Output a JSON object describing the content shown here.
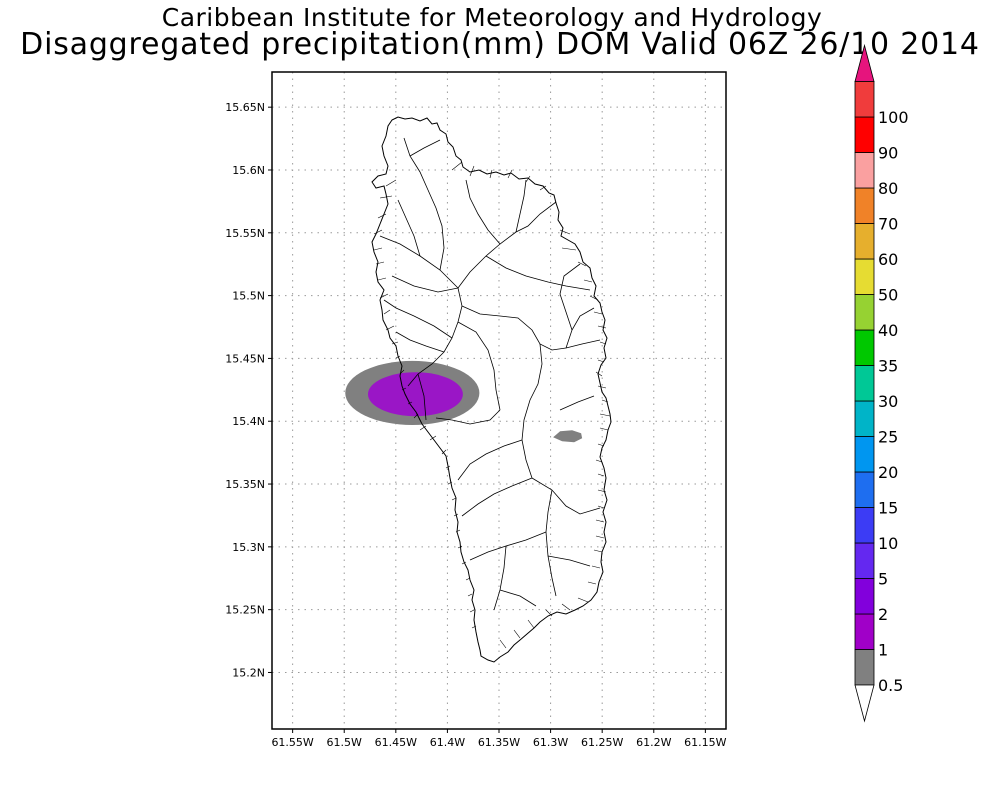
{
  "header": {
    "institute": "Caribbean Institute for Meteorology and Hydrology",
    "product": "Disaggregated precipitation(mm) DOM Valid 06Z 26/10 2014"
  },
  "map": {
    "lon_range": [
      -61.57,
      -61.13
    ],
    "lat_range": [
      15.155,
      15.678
    ],
    "x_ticks": [
      {
        "value": -61.55,
        "label": "61.55W"
      },
      {
        "value": -61.5,
        "label": "61.5W"
      },
      {
        "value": -61.45,
        "label": "61.45W"
      },
      {
        "value": -61.4,
        "label": "61.4W"
      },
      {
        "value": -61.35,
        "label": "61.35W"
      },
      {
        "value": -61.3,
        "label": "61.3W"
      },
      {
        "value": -61.25,
        "label": "61.25W"
      },
      {
        "value": -61.2,
        "label": "61.2W"
      },
      {
        "value": -61.15,
        "label": "61.15W"
      }
    ],
    "y_ticks": [
      {
        "value": 15.2,
        "label": "15.2N"
      },
      {
        "value": 15.25,
        "label": "15.25N"
      },
      {
        "value": 15.3,
        "label": "15.3N"
      },
      {
        "value": 15.35,
        "label": "15.35N"
      },
      {
        "value": 15.4,
        "label": "15.4N"
      },
      {
        "value": 15.45,
        "label": "15.45N"
      },
      {
        "value": 15.5,
        "label": "15.5N"
      },
      {
        "value": 15.55,
        "label": "15.55N"
      },
      {
        "value": 15.6,
        "label": "15.6N"
      },
      {
        "value": 15.65,
        "label": "15.65N"
      }
    ],
    "grid": true,
    "precip_areas": [
      {
        "shape": "ellipse",
        "center_lon": -61.434,
        "center_lat": 15.4225,
        "rx_deg": 0.065,
        "ry_deg": 0.0255,
        "class_mm": "0.5-1",
        "color": "#808080"
      },
      {
        "shape": "ellipse",
        "center_lon": -61.431,
        "center_lat": 15.4215,
        "rx_deg": 0.046,
        "ry_deg": 0.0175,
        "class_mm": "1-2",
        "color": "#9a16c6"
      },
      {
        "shape": "blob",
        "center_lon": -61.283,
        "center_lat": 15.388,
        "class_mm": "0.5-1",
        "color": "#808080"
      }
    ]
  },
  "colorbar": {
    "levels": [
      {
        "label": "0.5",
        "color": "#808080"
      },
      {
        "label": "1",
        "color": "#a000c8"
      },
      {
        "label": "2",
        "color": "#8200dc"
      },
      {
        "label": "5",
        "color": "#6428f0"
      },
      {
        "label": "10",
        "color": "#3c3cf5"
      },
      {
        "label": "15",
        "color": "#1e6ef0"
      },
      {
        "label": "20",
        "color": "#0096f0"
      },
      {
        "label": "25",
        "color": "#00b4c8"
      },
      {
        "label": "30",
        "color": "#00c896"
      },
      {
        "label": "35",
        "color": "#00c800"
      },
      {
        "label": "40",
        "color": "#96d232"
      },
      {
        "label": "50",
        "color": "#e6dc32"
      },
      {
        "label": "60",
        "color": "#e6af2d"
      },
      {
        "label": "70",
        "color": "#f08228"
      },
      {
        "label": "80",
        "color": "#faa0a0"
      },
      {
        "label": "90",
        "color": "#ff0000"
      },
      {
        "label": "100",
        "color": "#f03c3c"
      }
    ],
    "over_color": "#e6147d",
    "under_color": "#ffffff"
  }
}
